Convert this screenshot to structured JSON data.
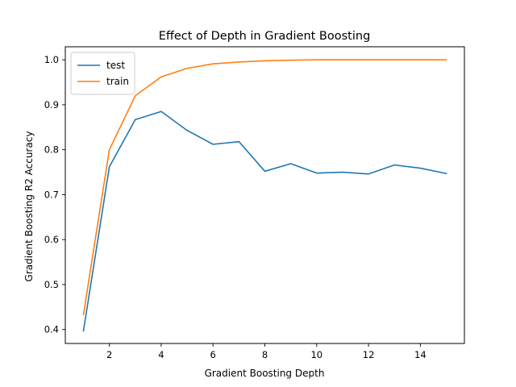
{
  "chart_data": {
    "type": "line",
    "title": "Effect of Depth in Gradient Boosting",
    "xlabel": "Gradient Boosting Depth",
    "ylabel": "Gradient Boosting R2 Accuracy",
    "x": [
      1,
      2,
      3,
      4,
      5,
      6,
      7,
      8,
      9,
      10,
      11,
      12,
      13,
      14,
      15
    ],
    "series": [
      {
        "name": "test",
        "color": "#1f77b4",
        "values": [
          0.397,
          0.762,
          0.867,
          0.885,
          0.843,
          0.812,
          0.818,
          0.752,
          0.769,
          0.748,
          0.75,
          0.746,
          0.766,
          0.759,
          0.747
        ]
      },
      {
        "name": "train",
        "color": "#ff7f0e",
        "values": [
          0.433,
          0.8,
          0.92,
          0.962,
          0.981,
          0.991,
          0.995,
          0.998,
          0.999,
          1.0,
          1.0,
          1.0,
          1.0,
          1.0,
          1.0
        ]
      }
    ],
    "xlim": [
      0.3,
      15.7
    ],
    "ylim": [
      0.369,
      1.029
    ],
    "xticks": [
      2,
      4,
      6,
      8,
      10,
      12,
      14
    ],
    "xtick_labels": [
      "2",
      "4",
      "6",
      "8",
      "10",
      "12",
      "14"
    ],
    "yticks": [
      0.4,
      0.5,
      0.6,
      0.7,
      0.8,
      0.9,
      1.0
    ],
    "ytick_labels": [
      "0.4",
      "0.5",
      "0.6",
      "0.7",
      "0.8",
      "0.9",
      "1.0"
    ],
    "grid": false,
    "legend_position": "upper left"
  }
}
